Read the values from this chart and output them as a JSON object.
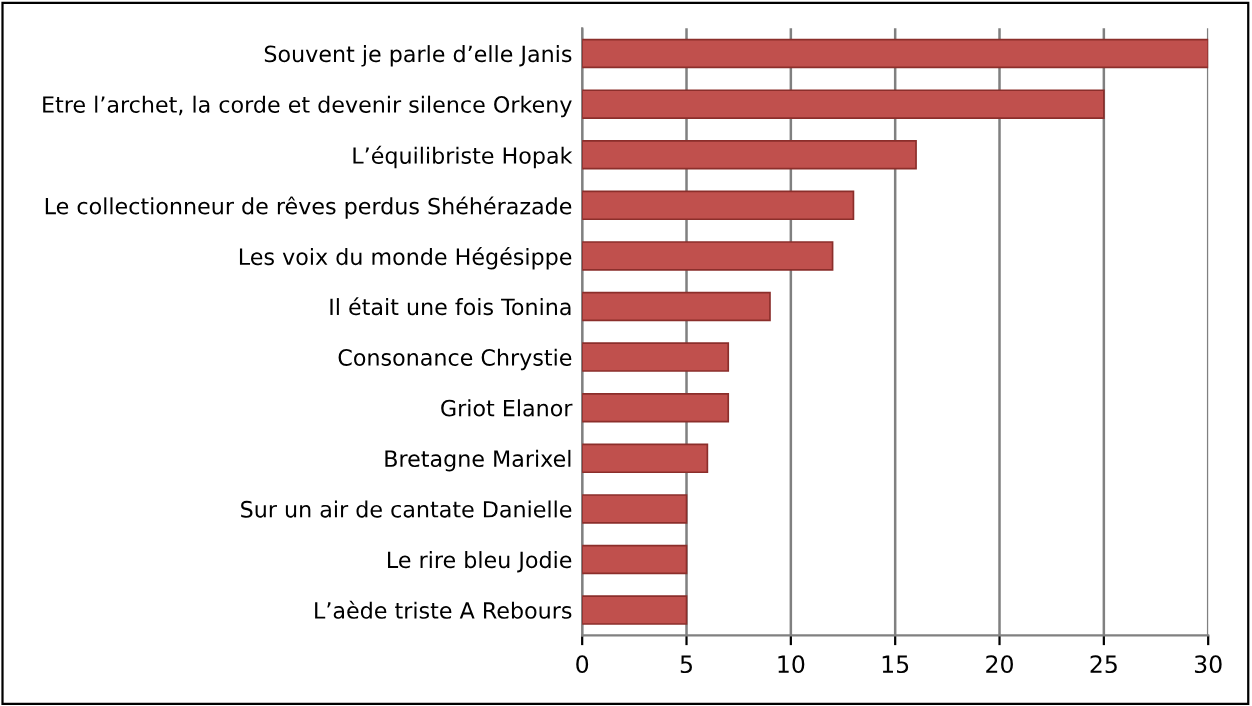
{
  "chart_data": {
    "type": "bar",
    "orientation": "horizontal",
    "categories": [
      "Souvent je parle d’elle Janis",
      "Etre l’archet, la corde et devenir silence Orkeny",
      "L’équilibriste Hopak",
      "Le collectionneur de rêves perdus Shéhérazade",
      "Les voix du monde Hégésippe",
      "Il était une fois Tonina",
      "Consonance Chrystie",
      "Griot Elanor",
      "Bretagne Marixel",
      "Sur un air de cantate Danielle",
      "Le rire bleu Jodie",
      "L’aède triste A Rebours"
    ],
    "values": [
      30,
      25,
      16,
      13,
      12,
      9,
      7,
      7,
      6,
      5,
      5,
      5
    ],
    "color": "#c0504d",
    "xlim": [
      0,
      30
    ],
    "xticks": [
      0,
      5,
      10,
      15,
      20,
      25,
      30
    ],
    "grid": "x"
  }
}
